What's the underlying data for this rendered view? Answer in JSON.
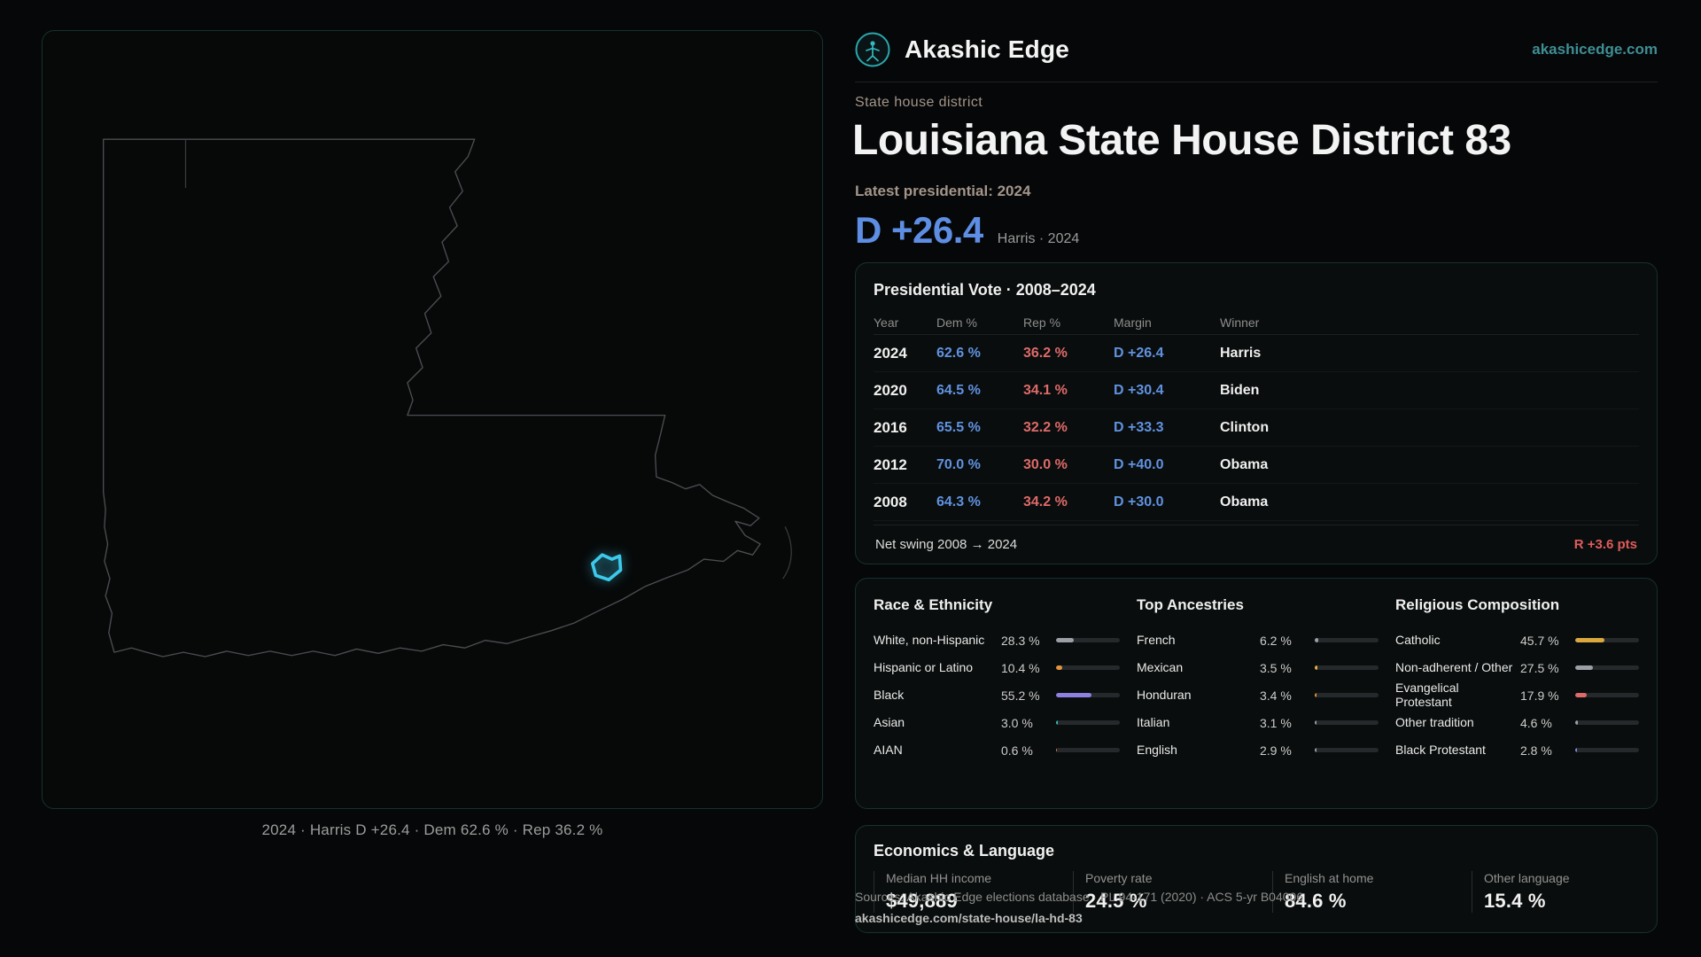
{
  "brand": {
    "name": "Akashic Edge",
    "site": "akashicedge.com"
  },
  "map": {
    "caption": "2024 · Harris D +26.4 · Dem 62.6 % · Rep 36.2 %"
  },
  "header": {
    "eyebrow": "State house district",
    "title": "Louisiana State House District 83",
    "latest_label": "Latest presidential: 2024",
    "headline_margin": "D +26.4",
    "headline_sub": "Harris · 2024"
  },
  "presidential": {
    "title": "Presidential Vote · 2008–2024",
    "columns": {
      "year": "Year",
      "dem": "Dem %",
      "rep": "Rep %",
      "margin": "Margin",
      "winner": "Winner"
    },
    "rows": [
      {
        "year": "2024",
        "dem": "62.6 %",
        "rep": "36.2 %",
        "margin": "D +26.4",
        "winner": "Harris"
      },
      {
        "year": "2020",
        "dem": "64.5 %",
        "rep": "34.1 %",
        "margin": "D +30.4",
        "winner": "Biden"
      },
      {
        "year": "2016",
        "dem": "65.5 %",
        "rep": "32.2 %",
        "margin": "D +33.3",
        "winner": "Clinton"
      },
      {
        "year": "2012",
        "dem": "70.0 %",
        "rep": "30.0 %",
        "margin": "D +40.0",
        "winner": "Obama"
      },
      {
        "year": "2008",
        "dem": "64.3 %",
        "rep": "34.2 %",
        "margin": "D +30.0",
        "winner": "Obama"
      }
    ],
    "net_swing_label": "Net swing 2008 → 2024",
    "net_swing_value": "R +3.6 pts"
  },
  "race": {
    "title": "Race & Ethnicity",
    "items": [
      {
        "label": "White, non-Hispanic",
        "value": "28.3 %",
        "pct": 28.3,
        "color": "#9aa0a6"
      },
      {
        "label": "Hispanic or Latino",
        "value": "10.4 %",
        "pct": 10.4,
        "color": "#e0953f"
      },
      {
        "label": "Black",
        "value": "55.2 %",
        "pct": 55.2,
        "color": "#8f7fe0"
      },
      {
        "label": "Asian",
        "value": "3.0 %",
        "pct": 3.0,
        "color": "#2fbfae"
      },
      {
        "label": "AIAN",
        "value": "0.6 %",
        "pct": 0.6,
        "color": "#e0793f"
      }
    ]
  },
  "ancestries": {
    "title": "Top Ancestries",
    "items": [
      {
        "label": "French",
        "value": "6.2 %",
        "pct": 6.2,
        "color": "#9aa0a6"
      },
      {
        "label": "Mexican",
        "value": "3.5 %",
        "pct": 3.5,
        "color": "#e0b13f"
      },
      {
        "label": "Honduran",
        "value": "3.4 %",
        "pct": 3.4,
        "color": "#e0953f"
      },
      {
        "label": "Italian",
        "value": "3.1 %",
        "pct": 3.1,
        "color": "#9aa0a6"
      },
      {
        "label": "English",
        "value": "2.9 %",
        "pct": 2.9,
        "color": "#9aa0a6"
      }
    ]
  },
  "religion": {
    "title": "Religious Composition",
    "items": [
      {
        "label": "Catholic",
        "value": "45.7 %",
        "pct": 45.7,
        "color": "#d9a93f"
      },
      {
        "label": "Non-adherent / Other",
        "value": "27.5 %",
        "pct": 27.5,
        "color": "#9aa0a6"
      },
      {
        "label": "Evangelical Protestant",
        "value": "17.9 %",
        "pct": 17.9,
        "color": "#e06a6a"
      },
      {
        "label": "Other tradition",
        "value": "4.6 %",
        "pct": 4.6,
        "color": "#9aa0a6"
      },
      {
        "label": "Black Protestant",
        "value": "2.8 %",
        "pct": 2.8,
        "color": "#7f86e0"
      }
    ]
  },
  "economics": {
    "title": "Economics & Language",
    "stats": [
      {
        "label": "Median HH income",
        "value": "$49,889"
      },
      {
        "label": "Poverty rate",
        "value": "24.5 %"
      },
      {
        "label": "English at home",
        "value": "84.6 %"
      },
      {
        "label": "Other language",
        "value": "15.4 %"
      }
    ]
  },
  "footer": {
    "sources": "Sources: Akashic Edge elections database · PL 94-171 (2020) · ACS 5-yr B04006",
    "permalink": "akashicedge.com/state-house/la-hd-83"
  },
  "colors": {
    "dem_blue": "#5e8ee4",
    "rep_red": "#df6a6a",
    "accent_teal": "#2aa7ad",
    "district_cyan": "#3dc9ea"
  }
}
